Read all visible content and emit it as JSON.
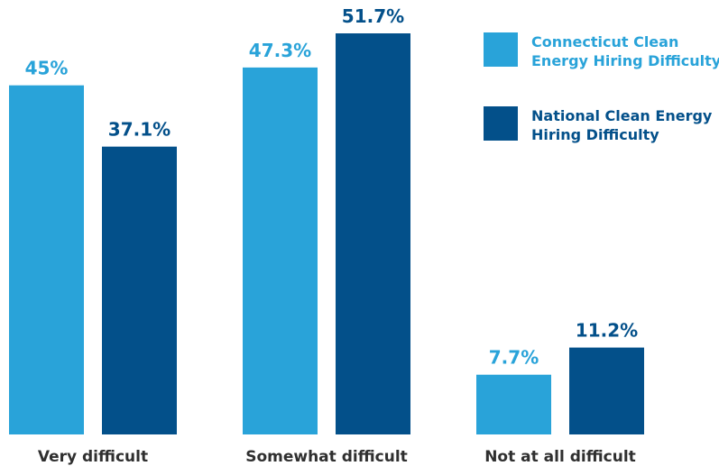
{
  "chart_data": {
    "type": "bar",
    "title": "",
    "xlabel": "",
    "ylabel": "",
    "categories": [
      "Very difficult",
      "Somewhat difficult",
      "Not at all difficult"
    ],
    "series": [
      {
        "name": "Connecticut Clean Energy Hiring Difficulty",
        "values": [
          45,
          47.3,
          7.7
        ],
        "labels": [
          "45%",
          "47.3%",
          "7.7%"
        ],
        "color": "#29a3d9"
      },
      {
        "name": "National Clean Energy Hiring Difficulty",
        "values": [
          37.1,
          51.7,
          11.2
        ],
        "labels": [
          "37.1%",
          "51.7%",
          "11.2%"
        ],
        "color": "#03508a"
      }
    ],
    "ylim": [
      0,
      51.7
    ],
    "grid": false,
    "legend_position": "top-right"
  },
  "legend": {
    "items": [
      {
        "label": "Connecticut Clean Energy Hiring Difficulty",
        "color": "#29a3d9"
      },
      {
        "label": "National Clean Energy Hiring Difficulty",
        "color": "#03508a"
      }
    ]
  }
}
